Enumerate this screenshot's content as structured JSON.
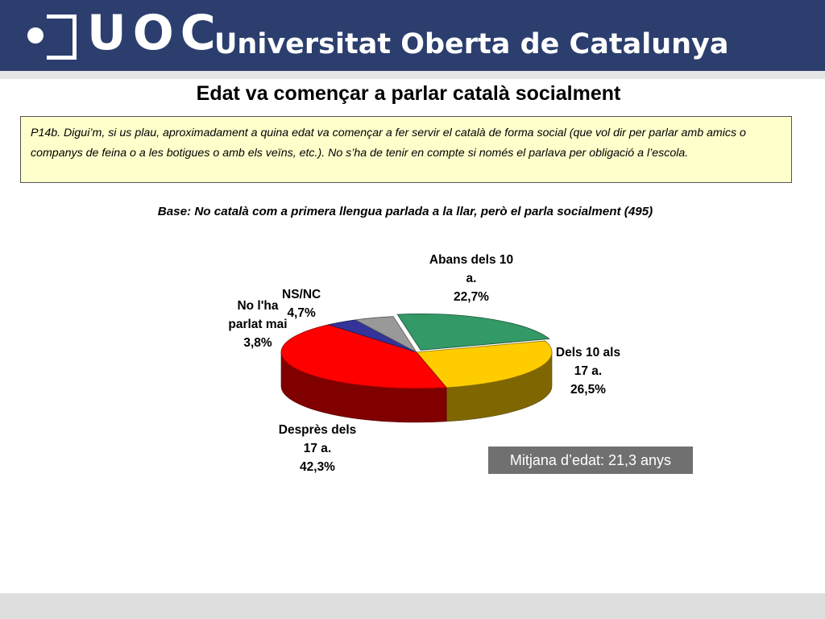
{
  "header": {
    "logo_text": "UOC",
    "university_name": "Universitat Oberta de Catalunya"
  },
  "title": "Edat va començar a parlar català socialment",
  "question": "P14b. Digui’m, si us plau, aproximadament a quina edat va començar a fer servir el català de forma social (que vol dir per parlar amb amics o companys de feina o a les botigues o amb els veïns, etc.). No s’ha de tenir en compte si només el parlava per obligació a l’escola.",
  "base": "Base: No català com a primera llengua parlada a la llar, però el parla socialment (495)",
  "average": "Mitjana d’edat: 21,3 anys",
  "chart_data": {
    "type": "pie",
    "slices": [
      {
        "label": "Abans dels 10 a.",
        "value": 22.7,
        "display": "22,7%",
        "color": "#339966"
      },
      {
        "label": "Dels 10 als 17 a.",
        "value": 26.5,
        "display": "26,5%",
        "color": "#ffcc00"
      },
      {
        "label": "Desprès dels 17 a.",
        "value": 42.3,
        "display": "42,3%",
        "color": "#ff0000"
      },
      {
        "label": "No l'ha parlat mai",
        "value": 3.8,
        "display": "3,8%",
        "color": "#333399"
      },
      {
        "label": "NS/NC",
        "value": 4.7,
        "display": "4,7%",
        "color": "#999999"
      }
    ]
  }
}
